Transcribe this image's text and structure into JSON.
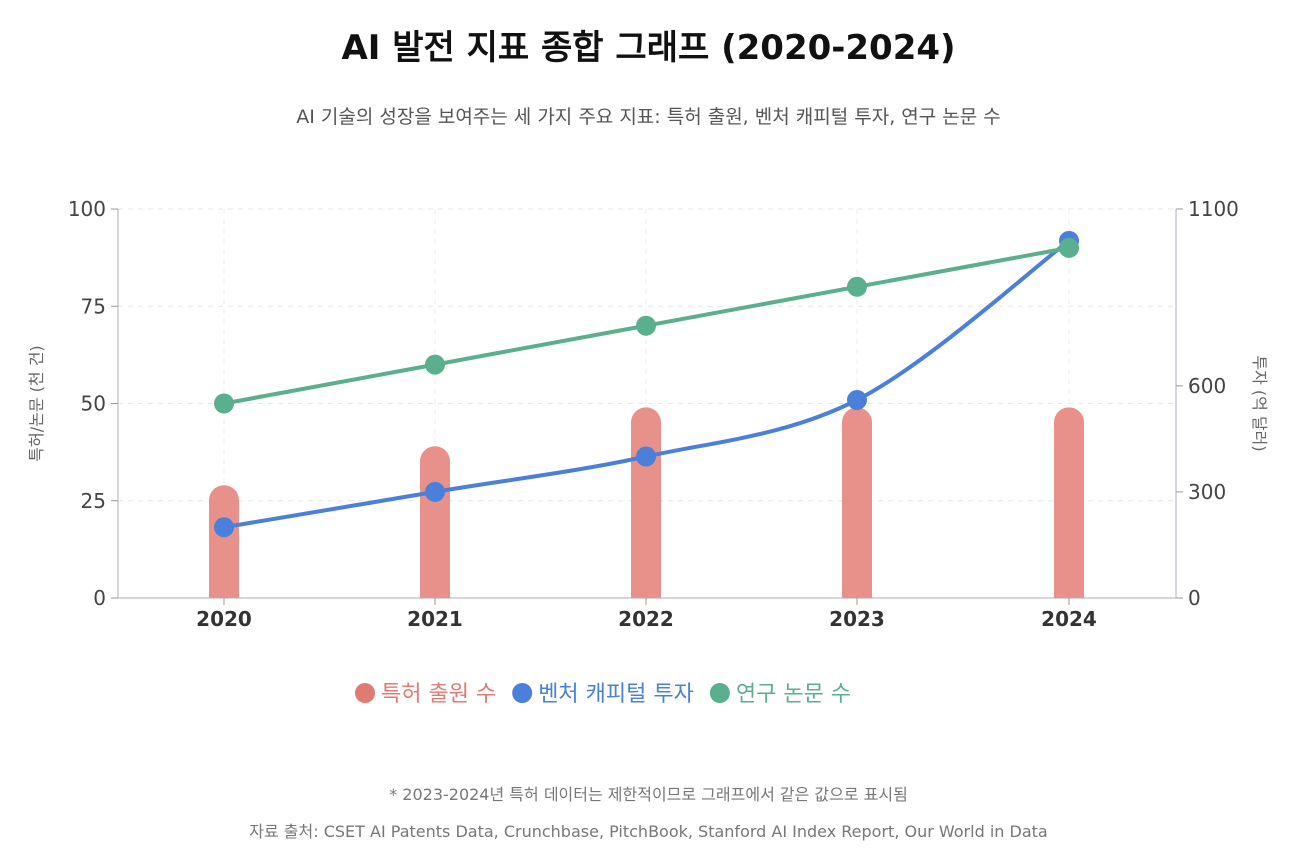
{
  "chart_data": {
    "type": "bar+line",
    "title": "AI 발전 지표 종합 그래프 (2020-2024)",
    "subtitle": "AI 기술의 성장을 보여주는 세 가지 주요 지표: 특허 출원, 벤처 캐피털 투자, 연구 논문 수",
    "categories": [
      "2020",
      "2021",
      "2022",
      "2023",
      "2024"
    ],
    "y_left": {
      "label": "특허/논문 (천 건)",
      "range": [
        0,
        100
      ],
      "ticks": [
        "0",
        "25",
        "50",
        "75",
        "100"
      ]
    },
    "y_right": {
      "label": "투자 (억 달러)",
      "range": [
        0,
        1100
      ],
      "ticks": [
        "0",
        "300",
        "600",
        "1100"
      ]
    },
    "grid": true,
    "legend_position": "bottom-center",
    "series": [
      {
        "name": "특허 출원 수",
        "type": "bar",
        "axis": "left",
        "color": "#e8908a",
        "legend_color": "#e07b74",
        "values": [
          29,
          39,
          49,
          49,
          49
        ]
      },
      {
        "name": "벤처 캐피털 투자",
        "type": "line",
        "axis": "right",
        "color": "#4a80d9",
        "values": [
          200,
          300,
          400,
          560,
          1010
        ]
      },
      {
        "name": "연구 논문 수",
        "type": "line",
        "axis": "left",
        "color": "#5aaf8e",
        "values": [
          50,
          60,
          70,
          80,
          90
        ]
      }
    ],
    "note": "* 2023-2024년 특허 데이터는 제한적이므로 그래프에서 같은 값으로 표시됨",
    "source": "자료 출처: CSET AI Patents Data, Crunchbase, PitchBook, Stanford AI Index Report, Our World in Data"
  }
}
